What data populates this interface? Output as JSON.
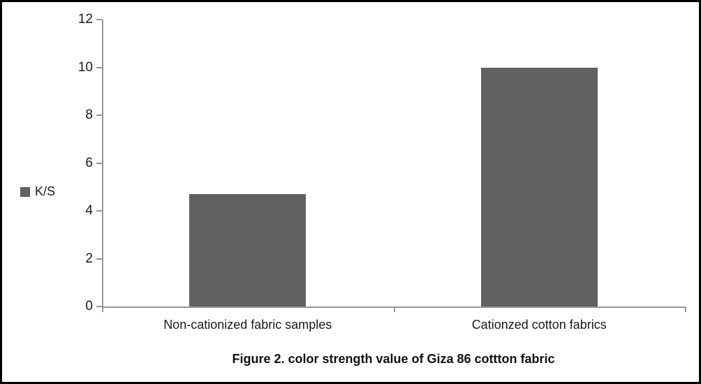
{
  "figure": {
    "caption": "Figure 2. color strength value of Giza 86 cottton fabric"
  },
  "legend": {
    "label": "K/S",
    "swatch_color": "#616161"
  },
  "chart_data": {
    "type": "bar",
    "title": "Figure 2. color strength value of Giza 86 cottton fabric",
    "categories": [
      "Non-cationized fabric samples",
      "Cationzed cotton fabrics"
    ],
    "series": [
      {
        "name": "K/S",
        "values": [
          4.7,
          10
        ]
      }
    ],
    "xlabel": "",
    "ylabel": "",
    "ylim": [
      0,
      12
    ],
    "yticks": [
      0,
      2,
      4,
      6,
      8,
      10,
      12
    ],
    "grid": false,
    "legend_position": "left",
    "bar_color": "#616161",
    "axis_color": "#969696",
    "text_color": "#1a1a1a"
  }
}
